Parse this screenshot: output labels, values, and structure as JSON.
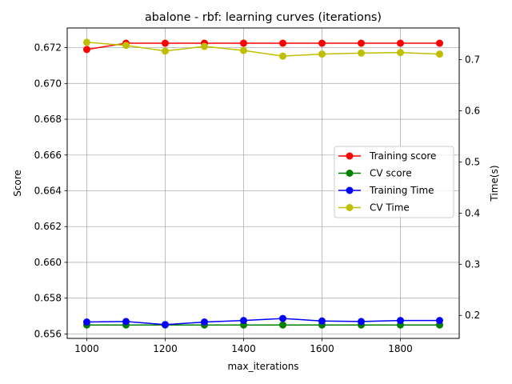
{
  "chart_data": {
    "type": "line",
    "title": "abalone - rbf: learning curves (iterations)",
    "xlabel": "max_iterations",
    "ylabel_left": "Score",
    "ylabel_right": "Time(s)",
    "x": [
      1000,
      1100,
      1200,
      1300,
      1400,
      1500,
      1600,
      1700,
      1800,
      1900
    ],
    "xlim": [
      950,
      1950
    ],
    "ylim_left": [
      0.65575,
      0.6731
    ],
    "ylim_right": [
      0.155,
      0.762
    ],
    "x_ticks": [
      1000,
      1200,
      1400,
      1600,
      1800
    ],
    "y_ticks_left": [
      "0.656",
      "0.658",
      "0.660",
      "0.662",
      "0.664",
      "0.666",
      "0.668",
      "0.670",
      "0.672"
    ],
    "y_ticks_right": [
      "0.2",
      "0.3",
      "0.4",
      "0.5",
      "0.6",
      "0.7"
    ],
    "grid": true,
    "legend_position": "center-right",
    "series": [
      {
        "name": "Training score",
        "axis": "left",
        "color": "#ff0000",
        "values": [
          0.6719,
          0.67225,
          0.67225,
          0.67225,
          0.67225,
          0.67225,
          0.67225,
          0.67225,
          0.67225,
          0.67225
        ]
      },
      {
        "name": "CV score",
        "axis": "left",
        "color": "#008000",
        "values": [
          0.6565,
          0.6565,
          0.6565,
          0.6565,
          0.6565,
          0.6565,
          0.6565,
          0.6565,
          0.6565,
          0.6565
        ]
      },
      {
        "name": "Training Time",
        "axis": "right",
        "color": "#0000ff",
        "values": [
          0.187,
          0.188,
          0.182,
          0.187,
          0.19,
          0.194,
          0.189,
          0.188,
          0.19,
          0.19
        ]
      },
      {
        "name": "CV Time",
        "axis": "right",
        "color": "#bfbf00",
        "values": [
          0.734,
          0.728,
          0.717,
          0.726,
          0.718,
          0.707,
          0.711,
          0.713,
          0.714,
          0.711
        ]
      }
    ]
  }
}
